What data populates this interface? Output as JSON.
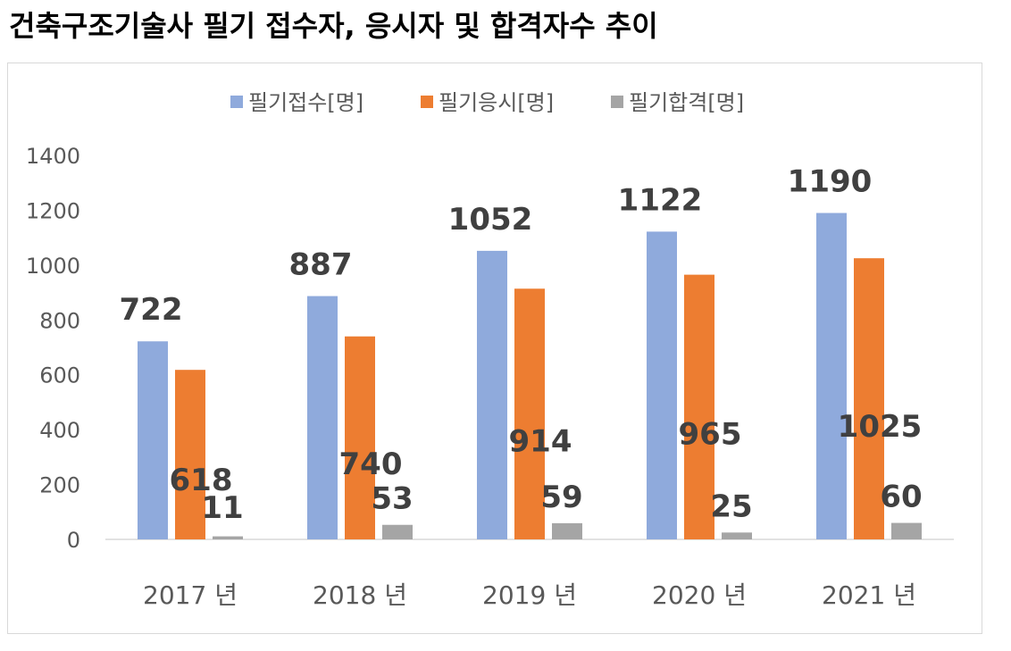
{
  "title": "건축구조기술사 필기 접수자, 응시자 및 합격자수 추이",
  "chart_data": {
    "type": "bar",
    "categories": [
      "2017 년",
      "2018 년",
      "2019 년",
      "2020 년",
      "2021 년"
    ],
    "series": [
      {
        "name": "필기접수[명]",
        "values": [
          722,
          887,
          1052,
          1122,
          1190
        ],
        "color": "#8faadc"
      },
      {
        "name": "필기응시[명]",
        "values": [
          618,
          740,
          914,
          965,
          1025
        ],
        "color": "#ed7d31"
      },
      {
        "name": "필기합격[명]",
        "values": [
          11,
          53,
          59,
          25,
          60
        ],
        "color": "#a5a5a5"
      }
    ],
    "ylim": [
      0,
      1400
    ],
    "yticks": [
      0,
      200,
      400,
      600,
      800,
      1000,
      1200,
      1400
    ],
    "grid": false,
    "legend": "top-center",
    "data_labels": true
  }
}
